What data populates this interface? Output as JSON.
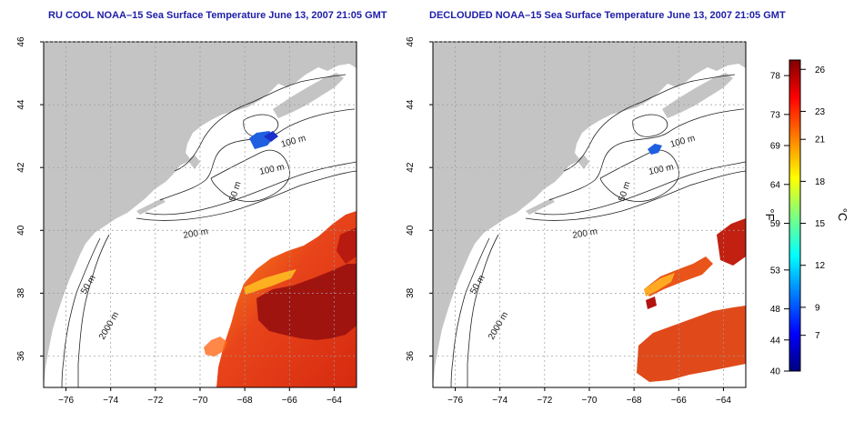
{
  "panels": [
    {
      "title": "RU COOL NOAA–15 Sea Surface Temperature June 13, 2007 21:05 GMT",
      "contour_labels": [
        "100 m",
        "100 m",
        "50 m",
        "200 m",
        "50 m",
        "2000 m"
      ],
      "x_ticks": [
        "−76",
        "−74",
        "−72",
        "−70",
        "−68",
        "−66",
        "−64"
      ],
      "y_ticks": [
        "36",
        "38",
        "40",
        "42",
        "44",
        "46"
      ]
    },
    {
      "title": "DECLOUDED NOAA–15 Sea Surface Temperature June 13, 2007 21:05 GMT",
      "contour_labels": [
        "100 m",
        "100 m",
        "50 m",
        "200 m",
        "50 m",
        "2000 m"
      ],
      "x_ticks": [
        "−76",
        "−74",
        "−72",
        "−70",
        "−68",
        "−66",
        "−64"
      ],
      "y_ticks": [
        "36",
        "38",
        "40",
        "42",
        "44",
        "46"
      ]
    }
  ],
  "map_extent": {
    "lon": [
      -77,
      -63
    ],
    "lat": [
      35,
      46
    ]
  },
  "colorbar": {
    "unit_f": "°F",
    "unit_c": "°C",
    "f_ticks": [
      {
        "label": "78",
        "value": 78
      },
      {
        "label": "73",
        "value": 73
      },
      {
        "label": "69",
        "value": 69
      },
      {
        "label": "64",
        "value": 64
      },
      {
        "label": "59",
        "value": 59
      },
      {
        "label": "53",
        "value": 53
      },
      {
        "label": "48",
        "value": 48
      },
      {
        "label": "44",
        "value": 44
      },
      {
        "label": "40",
        "value": 40
      }
    ],
    "c_ticks": [
      {
        "label": "26",
        "value": 26
      },
      {
        "label": "23",
        "value": 23
      },
      {
        "label": "21",
        "value": 21
      },
      {
        "label": "18",
        "value": 18
      },
      {
        "label": "15",
        "value": 15
      },
      {
        "label": "12",
        "value": 12
      },
      {
        "label": "9",
        "value": 9
      },
      {
        "label": "7",
        "value": 7
      }
    ],
    "f_range": [
      40,
      80
    ],
    "colors": [
      "#00007f",
      "#0000ff",
      "#007fff",
      "#00ffff",
      "#7fff7f",
      "#ffff00",
      "#ff7f00",
      "#ff0000",
      "#7f0000"
    ]
  }
}
